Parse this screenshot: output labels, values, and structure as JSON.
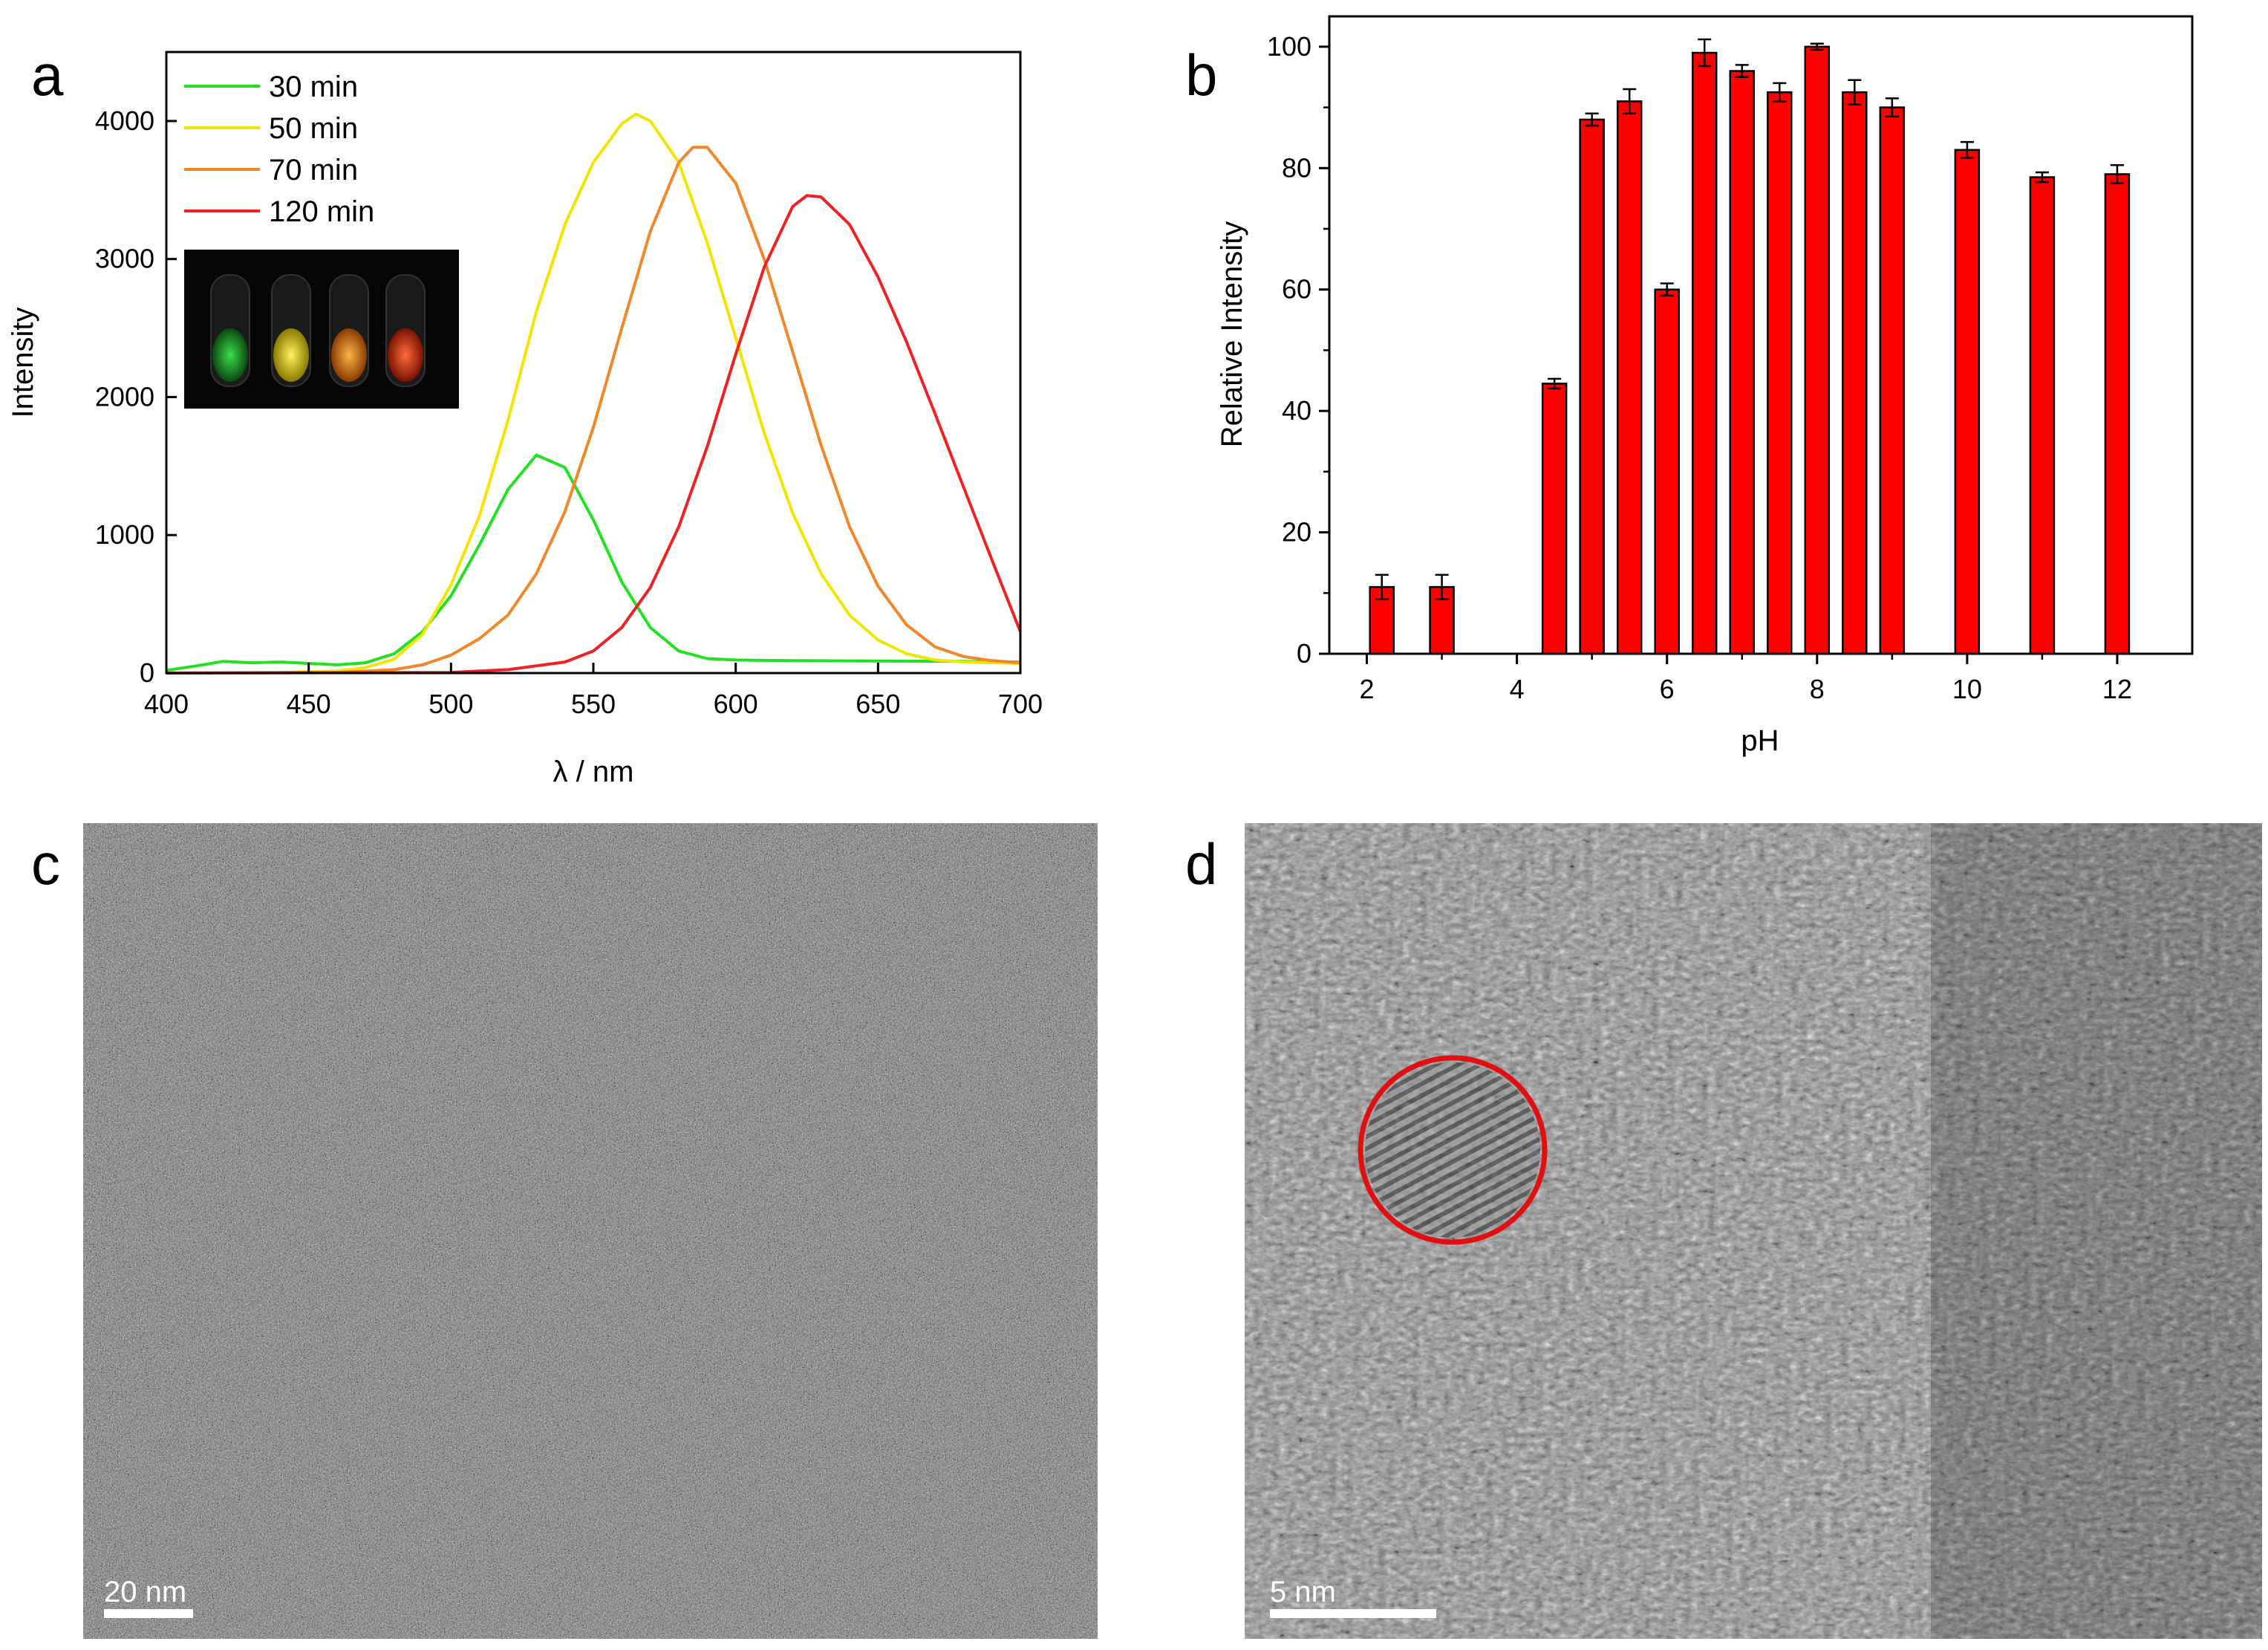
{
  "panel_labels": {
    "a": "a",
    "b": "b",
    "c": "c",
    "d": "d"
  },
  "colors": {
    "green": "#22e022",
    "yellow": "#f2e600",
    "orange": "#f2872a",
    "red": "#ee2222",
    "bar_fill": "#ff0000",
    "micrograph_c_base": "#7d7d7d",
    "micrograph_d_base": "#8a8a8a",
    "highlight_circle": "#e01010"
  },
  "chart_data": [
    {
      "type": "line",
      "panel": "a",
      "title": "",
      "xlabel": "λ / nm",
      "ylabel": "Intensity",
      "xlim": [
        400,
        700
      ],
      "ylim": [
        0,
        4500
      ],
      "xticks": [
        400,
        450,
        500,
        550,
        600,
        650,
        700
      ],
      "yticks": [
        0,
        1000,
        2000,
        3000,
        4000
      ],
      "grid": false,
      "legend_position": "top-left",
      "inset": {
        "description": "photo of four vials under UV light",
        "vial_colors": [
          "#27c23a",
          "#f5e51c",
          "#ff8c1a",
          "#ff3b1f"
        ]
      },
      "series": [
        {
          "name": "30 min",
          "color": "#22e022",
          "points": [
            [
              400,
              20
            ],
            [
              410,
              50
            ],
            [
              420,
              85
            ],
            [
              430,
              75
            ],
            [
              440,
              80
            ],
            [
              450,
              70
            ],
            [
              460,
              60
            ],
            [
              470,
              75
            ],
            [
              480,
              140
            ],
            [
              490,
              300
            ],
            [
              500,
              560
            ],
            [
              510,
              930
            ],
            [
              520,
              1330
            ],
            [
              530,
              1580
            ],
            [
              540,
              1490
            ],
            [
              550,
              1110
            ],
            [
              560,
              660
            ],
            [
              570,
              330
            ],
            [
              580,
              160
            ],
            [
              590,
              105
            ],
            [
              600,
              95
            ],
            [
              620,
              90
            ],
            [
              650,
              88
            ],
            [
              680,
              85
            ],
            [
              700,
              80
            ]
          ]
        },
        {
          "name": "50 min",
          "color": "#f2e600",
          "points": [
            [
              400,
              0
            ],
            [
              440,
              5
            ],
            [
              460,
              15
            ],
            [
              470,
              40
            ],
            [
              480,
              100
            ],
            [
              490,
              280
            ],
            [
              500,
              640
            ],
            [
              510,
              1140
            ],
            [
              520,
              1830
            ],
            [
              530,
              2620
            ],
            [
              540,
              3250
            ],
            [
              550,
              3700
            ],
            [
              560,
              3980
            ],
            [
              565,
              4050
            ],
            [
              570,
              4000
            ],
            [
              580,
              3700
            ],
            [
              590,
              3120
            ],
            [
              600,
              2430
            ],
            [
              610,
              1740
            ],
            [
              620,
              1160
            ],
            [
              630,
              720
            ],
            [
              640,
              420
            ],
            [
              650,
              240
            ],
            [
              660,
              140
            ],
            [
              670,
              95
            ],
            [
              680,
              80
            ],
            [
              700,
              70
            ]
          ]
        },
        {
          "name": "70 min",
          "color": "#f2872a",
          "points": [
            [
              400,
              0
            ],
            [
              460,
              5
            ],
            [
              480,
              25
            ],
            [
              490,
              60
            ],
            [
              500,
              130
            ],
            [
              510,
              250
            ],
            [
              520,
              420
            ],
            [
              530,
              720
            ],
            [
              540,
              1170
            ],
            [
              550,
              1780
            ],
            [
              560,
              2500
            ],
            [
              570,
              3200
            ],
            [
              580,
              3700
            ],
            [
              585,
              3810
            ],
            [
              590,
              3810
            ],
            [
              600,
              3550
            ],
            [
              610,
              3000
            ],
            [
              620,
              2330
            ],
            [
              630,
              1650
            ],
            [
              640,
              1060
            ],
            [
              650,
              630
            ],
            [
              660,
              350
            ],
            [
              670,
              190
            ],
            [
              680,
              120
            ],
            [
              690,
              90
            ],
            [
              700,
              75
            ]
          ]
        },
        {
          "name": "120 min",
          "color": "#ee2222",
          "points": [
            [
              400,
              0
            ],
            [
              500,
              5
            ],
            [
              520,
              25
            ],
            [
              540,
              80
            ],
            [
              550,
              160
            ],
            [
              560,
              330
            ],
            [
              570,
              620
            ],
            [
              580,
              1060
            ],
            [
              590,
              1640
            ],
            [
              600,
              2310
            ],
            [
              610,
              2940
            ],
            [
              620,
              3380
            ],
            [
              625,
              3460
            ],
            [
              630,
              3450
            ],
            [
              640,
              3250
            ],
            [
              650,
              2870
            ],
            [
              660,
              2400
            ],
            [
              670,
              1880
            ],
            [
              680,
              1350
            ],
            [
              690,
              820
            ],
            [
              700,
              300
            ]
          ]
        }
      ]
    },
    {
      "type": "bar",
      "panel": "b",
      "title": "",
      "xlabel": "pH",
      "ylabel": "Relative Intensity",
      "xlim": [
        1.5,
        13
      ],
      "ylim": [
        0,
        105
      ],
      "xticks": [
        2,
        4,
        6,
        8,
        10,
        12
      ],
      "yticks": [
        0,
        20,
        40,
        60,
        80,
        100
      ],
      "grid": false,
      "x": [
        2.2,
        3.0,
        4.5,
        5.0,
        5.5,
        6.0,
        6.5,
        7.0,
        7.5,
        8.0,
        8.5,
        9.0,
        10.0,
        11.0,
        12.0
      ],
      "values": [
        11.0,
        11.0,
        44.5,
        88.0,
        91.0,
        60.0,
        99.0,
        96.0,
        92.5,
        100.0,
        92.5,
        90.0,
        83.0,
        78.5,
        79.0
      ],
      "errors": [
        2.0,
        2.0,
        0.8,
        1.0,
        2.0,
        1.0,
        2.2,
        1.0,
        1.5,
        0.5,
        2.0,
        1.5,
        1.3,
        0.8,
        1.5
      ]
    }
  ],
  "micrograph_c": {
    "scale_bar_label": "20 nm"
  },
  "micrograph_d": {
    "scale_bar_label": "5 nm"
  }
}
